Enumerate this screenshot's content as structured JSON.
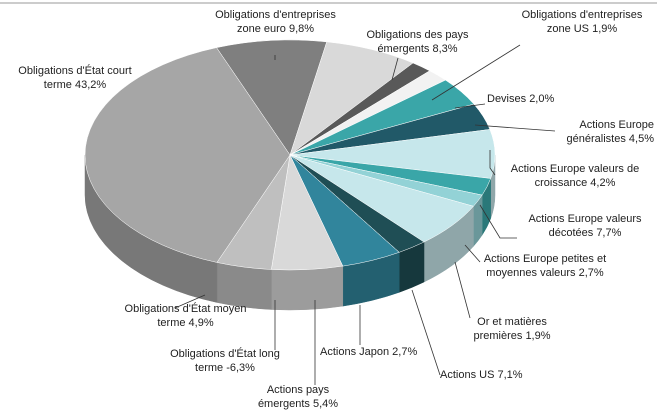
{
  "chart_data": {
    "type": "pie3d",
    "categories": [
      "Obligations d'État court terme",
      "Obligations d'entreprises zone euro",
      "Obligations des pays émergents",
      "Obligations d'entreprises zone US",
      "Devises",
      "Actions Europe généralistes",
      "Actions Europe valeurs de croissance",
      "Actions Europe valeurs décotées",
      "Actions Europe petites et moyennes valeurs",
      "Or et matières premières",
      "Actions US",
      "Actions Japon",
      "Actions pays émergents",
      "Obligations d'État long terme",
      "Obligations d'État moyen terme"
    ],
    "values": [
      43.2,
      9.8,
      8.3,
      1.9,
      2.0,
      4.5,
      4.2,
      7.7,
      2.7,
      1.9,
      7.1,
      2.7,
      5.4,
      -6.3,
      4.9
    ],
    "value_labels": [
      "43,2%",
      "9,8%",
      "8,3%",
      "1,9%",
      "2,0%",
      "4,5%",
      "4,2%",
      "7,7%",
      "2,7%",
      "1,9%",
      "7,1%",
      "2,7%",
      "5,4%",
      "-6,3%",
      "4,9%"
    ],
    "colors": [
      "#a6a6a6",
      "#7f7f7f",
      "#d9d9d9",
      "#595959",
      "#f2f2f2",
      "#3aa6a8",
      "#215968",
      "#c6e7eb",
      "#3aa6a8",
      "#93d2d6",
      "#c6e7eb",
      "#1f4e55",
      "#31859c",
      "#d9d9d9",
      "#bfbfbf"
    ]
  }
}
